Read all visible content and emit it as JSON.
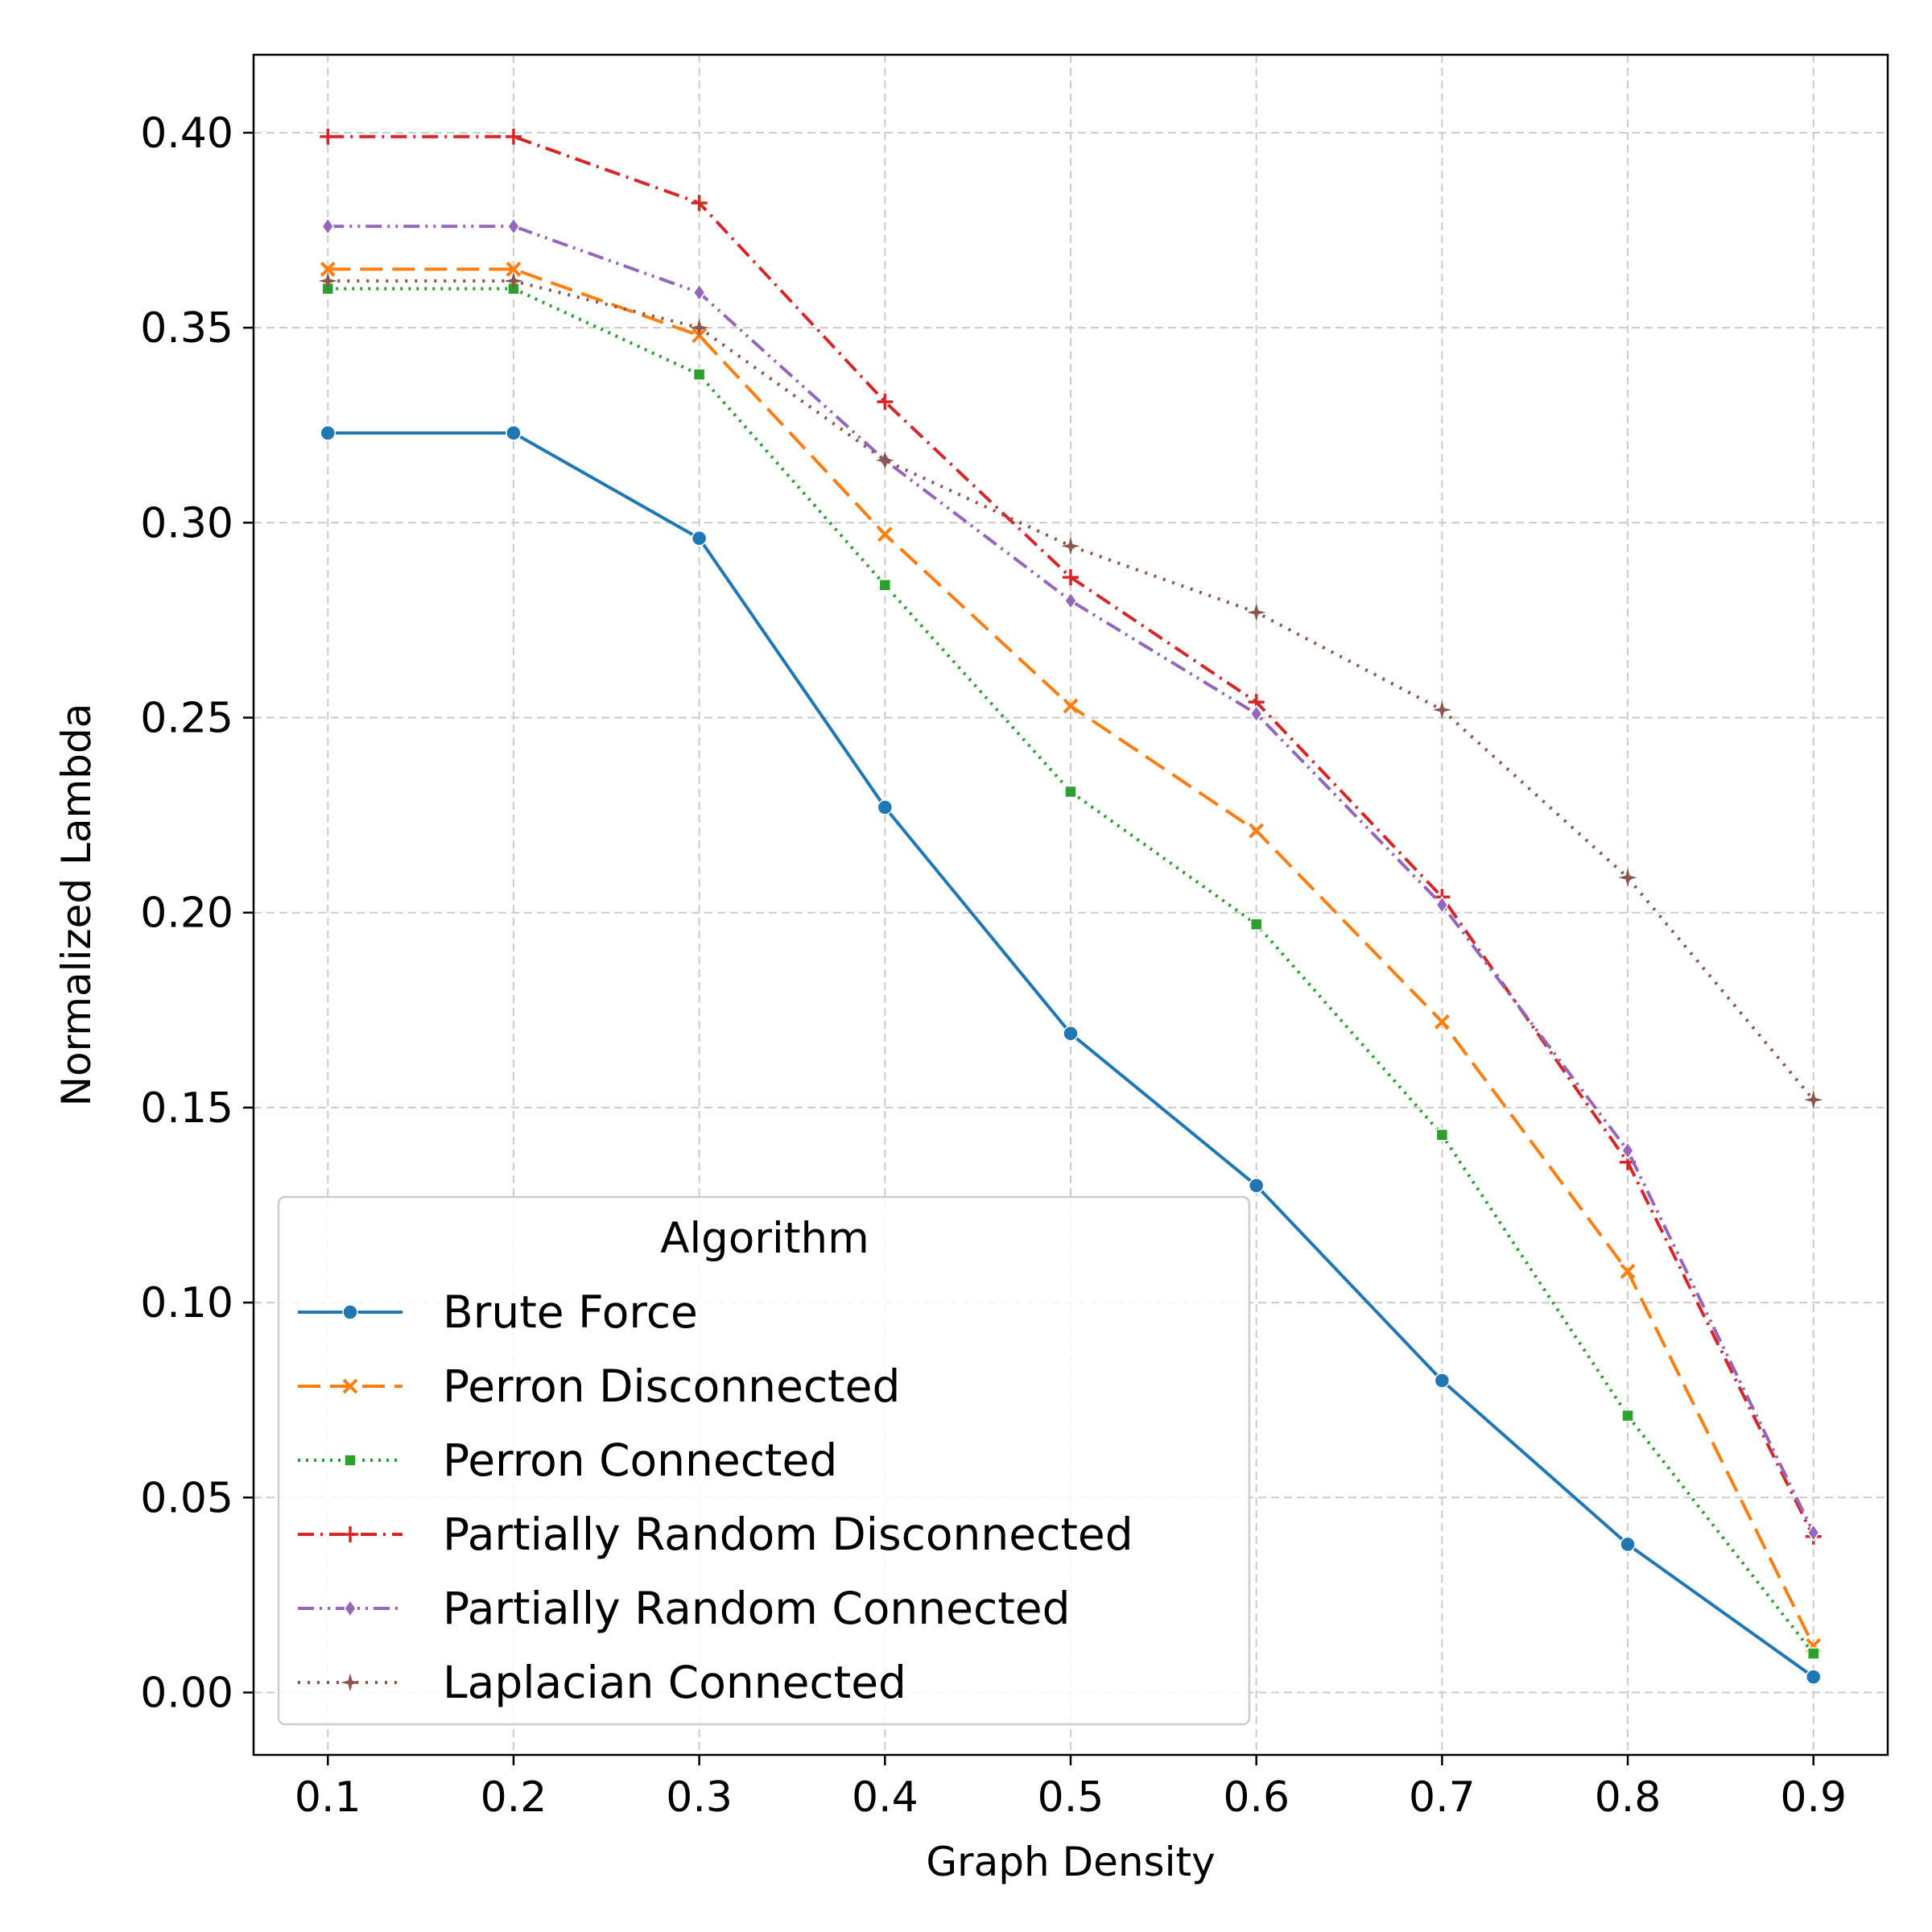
{
  "chart_data": {
    "type": "line",
    "title": "",
    "xlabel": "Graph Density",
    "ylabel": "Normalized Lambda",
    "xlim": [
      0.06,
      0.94
    ],
    "ylim": [
      -0.016,
      0.42
    ],
    "x": [
      0.1,
      0.2,
      0.3,
      0.4,
      0.5,
      0.6,
      0.7,
      0.8,
      0.9
    ],
    "xticks": [
      "0.1",
      "0.2",
      "0.3",
      "0.4",
      "0.5",
      "0.6",
      "0.7",
      "0.8",
      "0.9"
    ],
    "yticks": [
      "0.00",
      "0.05",
      "0.10",
      "0.15",
      "0.20",
      "0.25",
      "0.30",
      "0.35",
      "0.40"
    ],
    "grid": true,
    "legend": {
      "title": "Algorithm",
      "placement": "lower-left"
    },
    "series": [
      {
        "name": "Brute Force",
        "color": "#1f77b4",
        "dash": "solid",
        "marker": "circle",
        "values": [
          0.323,
          0.323,
          0.296,
          0.227,
          0.169,
          0.13,
          0.08,
          0.038,
          0.004
        ]
      },
      {
        "name": "Perron Disconnected",
        "color": "#ff7f0e",
        "dash": "dashed",
        "marker": "x",
        "values": [
          0.365,
          0.365,
          0.348,
          0.297,
          0.253,
          0.221,
          0.172,
          0.108,
          0.012
        ]
      },
      {
        "name": "Perron Connected",
        "color": "#2ca02c",
        "dash": "dotted",
        "marker": "square",
        "values": [
          0.36,
          0.36,
          0.338,
          0.284,
          0.231,
          0.197,
          0.143,
          0.071,
          0.01
        ]
      },
      {
        "name": "Partially Random Disconnected",
        "color": "#d62728",
        "dash": "dashdot",
        "marker": "plus",
        "values": [
          0.399,
          0.399,
          0.382,
          0.331,
          0.286,
          0.254,
          0.204,
          0.136,
          0.04
        ]
      },
      {
        "name": "Partially Random Connected",
        "color": "#9467bd",
        "dash": "dashdotdot",
        "marker": "diamond",
        "values": [
          0.376,
          0.376,
          0.359,
          0.316,
          0.28,
          0.251,
          0.202,
          0.139,
          0.041
        ]
      },
      {
        "name": "Laplacian Connected",
        "color": "#8c564b",
        "dash": "densedot",
        "marker": "star",
        "values": [
          0.362,
          0.362,
          0.35,
          0.316,
          0.294,
          0.277,
          0.252,
          0.209,
          0.152
        ]
      }
    ]
  }
}
